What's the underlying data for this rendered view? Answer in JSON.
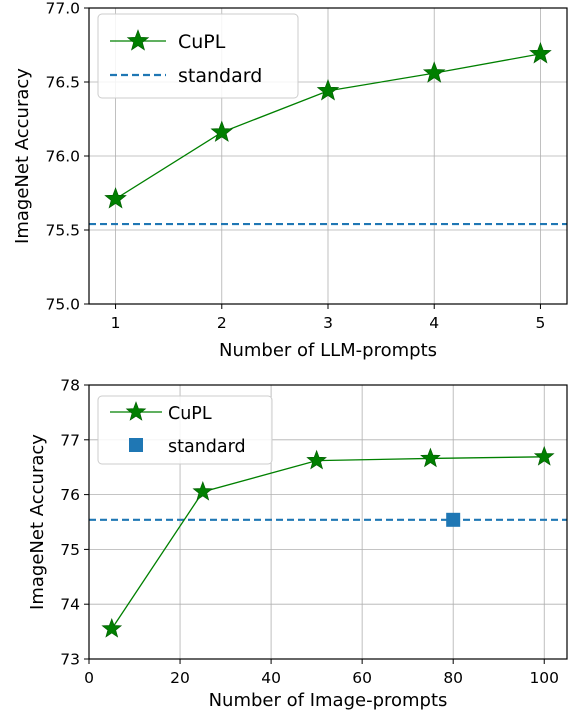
{
  "colors": {
    "cupl": "#008000",
    "cupl_marker": "#007f00",
    "standard": "#1f77b4",
    "grid": "#b0b0b0"
  },
  "chart_data": [
    {
      "type": "line",
      "xlabel": "Number of LLM-prompts",
      "ylabel": "ImageNet Accuracy",
      "xlim": [
        0.75,
        5.25
      ],
      "ylim": [
        75.0,
        77.0
      ],
      "xticks": [
        1,
        2,
        3,
        4,
        5
      ],
      "xtick_labels": [
        "1",
        "2",
        "3",
        "4",
        "5"
      ],
      "yticks": [
        75.0,
        75.5,
        76.0,
        76.5,
        77.0
      ],
      "ytick_labels": [
        "75.0",
        "75.5",
        "76.0",
        "76.5",
        "77.0"
      ],
      "grid": true,
      "legend_position": "top-left",
      "series": [
        {
          "name": "CuPL",
          "marker": "star-icon",
          "style": "solid",
          "x": [
            1,
            2,
            3,
            4,
            5
          ],
          "y": [
            75.71,
            76.16,
            76.44,
            76.56,
            76.69
          ]
        },
        {
          "name": "standard",
          "style": "dashed-horizontal-line",
          "y": 75.54
        }
      ]
    },
    {
      "type": "line",
      "xlabel": "Number of Image-prompts",
      "ylabel": "ImageNet Accuracy",
      "xlim": [
        0,
        105
      ],
      "ylim": [
        73,
        78
      ],
      "xticks": [
        0,
        20,
        40,
        60,
        80,
        100
      ],
      "xtick_labels": [
        "0",
        "20",
        "40",
        "60",
        "80",
        "100"
      ],
      "yticks": [
        73,
        74,
        75,
        76,
        77,
        78
      ],
      "ytick_labels": [
        "73",
        "74",
        "75",
        "76",
        "77",
        "78"
      ],
      "grid": true,
      "legend_position": "top-left",
      "series": [
        {
          "name": "CuPL",
          "marker": "star-icon",
          "style": "solid",
          "x": [
            5,
            25,
            50,
            75,
            100
          ],
          "y": [
            73.55,
            76.05,
            76.62,
            76.66,
            76.69
          ]
        },
        {
          "name": "standard",
          "marker": "square-icon",
          "style": "dashed-horizontal-line",
          "x": [
            80
          ],
          "y": [
            75.54
          ]
        }
      ]
    }
  ]
}
